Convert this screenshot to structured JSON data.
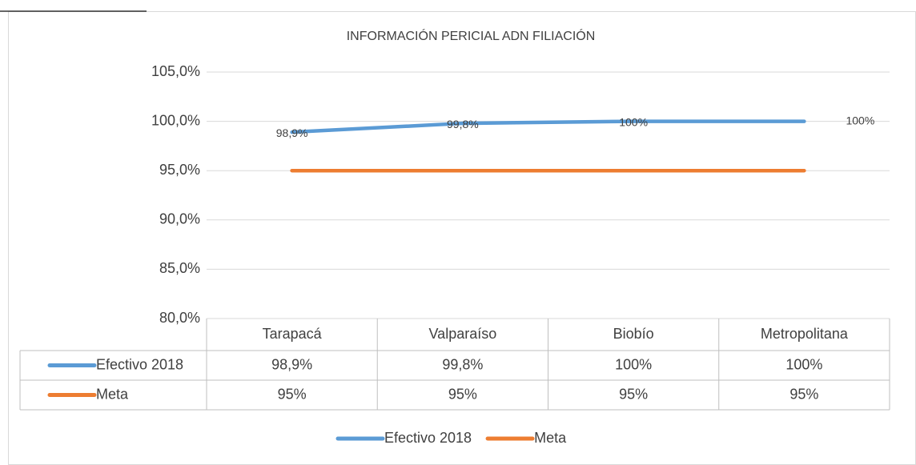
{
  "chart_data": {
    "type": "line",
    "title": "INFORMACIÓN PERICIAL ADN FILIACIÓN",
    "categories": [
      "Tarapacá",
      "Valparaíso",
      "Biobío",
      "Metropolitana"
    ],
    "series": [
      {
        "name": "Efectivo 2018",
        "color": "#5b9bd5",
        "values": [
          98.9,
          99.8,
          100,
          100
        ],
        "value_labels": [
          "98,9%",
          "99,8%",
          "100%",
          "100%"
        ]
      },
      {
        "name": "Meta",
        "color": "#ed7d31",
        "values": [
          95,
          95,
          95,
          95
        ],
        "value_labels": [
          "95%",
          "95%",
          "95%",
          "95%"
        ]
      }
    ],
    "ylim": [
      80,
      105
    ],
    "yticks": [
      {
        "value": 80,
        "label": "80,0%"
      },
      {
        "value": 85,
        "label": "85,0%"
      },
      {
        "value": 90,
        "label": "90,0%"
      },
      {
        "value": 95,
        "label": "95,0%"
      },
      {
        "value": 100,
        "label": "100,0%"
      },
      {
        "value": 105,
        "label": "105,0%"
      }
    ],
    "grid": true,
    "legend": "bottom"
  }
}
